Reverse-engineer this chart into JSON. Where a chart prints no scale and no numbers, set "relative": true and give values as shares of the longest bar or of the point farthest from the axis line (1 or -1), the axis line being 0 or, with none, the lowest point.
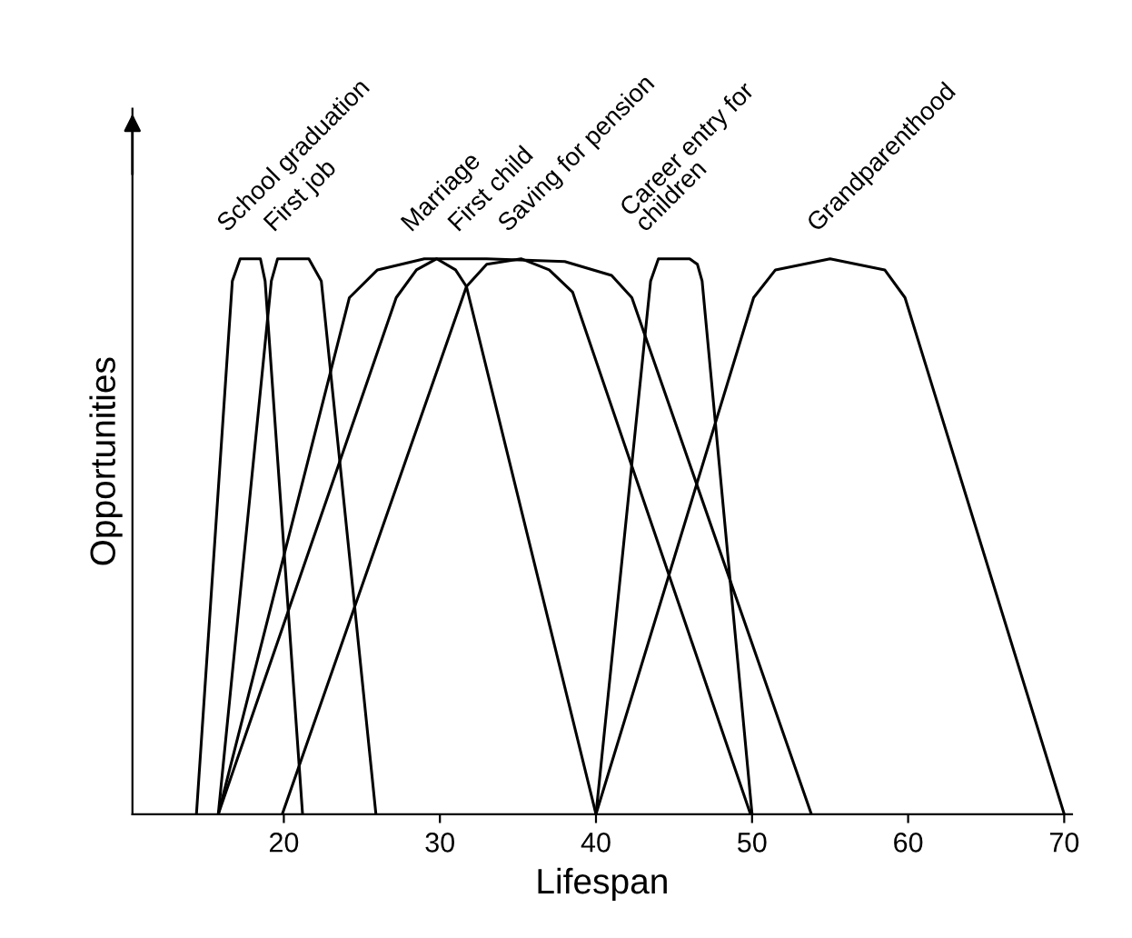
{
  "chart_data": {
    "type": "line",
    "relative": true,
    "xlabel": "Lifespan",
    "ylabel": "Opportunities",
    "xlim": [
      10.3,
      70.5
    ],
    "xticks": [
      20,
      30,
      40,
      50,
      60,
      70
    ],
    "grid": false,
    "legend": false,
    "marker": "none",
    "line_style": "solid",
    "series": [
      {
        "name": "School graduation",
        "color": "#000000",
        "x": [
          14.4,
          16.7,
          17.2,
          18.5,
          18.8,
          21.2
        ],
        "values": [
          0,
          0.96,
          1,
          1,
          0.96,
          0
        ]
      },
      {
        "name": "First job",
        "color": "#000000",
        "x": [
          15.8,
          19.2,
          19.6,
          21.6,
          22.4,
          25.9
        ],
        "values": [
          0,
          0.96,
          1,
          1,
          0.96,
          0
        ]
      },
      {
        "name": "Marriage",
        "color": "#000000",
        "x": [
          15.8,
          24.2,
          26,
          29,
          33,
          38,
          41,
          42.3,
          53.8
        ],
        "values": [
          0,
          0.93,
          0.98,
          1,
          1,
          0.995,
          0.97,
          0.93,
          0
        ]
      },
      {
        "name": "First child",
        "color": "#000000",
        "x": [
          15.8,
          27.2,
          28.5,
          29.8,
          31,
          31.7,
          40
        ],
        "values": [
          0,
          0.93,
          0.98,
          1,
          0.98,
          0.95,
          0
        ]
      },
      {
        "name": "Saving for pension",
        "color": "#000000",
        "x": [
          19.9,
          31.7,
          33,
          35.2,
          37,
          38.5,
          49.9
        ],
        "values": [
          0,
          0.95,
          0.99,
          1,
          0.98,
          0.94,
          0
        ]
      },
      {
        "name": "Career entry for\nchildren",
        "color": "#000000",
        "x": [
          40,
          43.5,
          44,
          46,
          46.5,
          46.8,
          50
        ],
        "values": [
          0,
          0.96,
          1,
          1,
          0.99,
          0.96,
          0
        ]
      },
      {
        "name": "Grandparenthood",
        "color": "#000000",
        "x": [
          40,
          50.1,
          51.5,
          55,
          58.5,
          59.8,
          70
        ],
        "values": [
          0,
          0.93,
          0.98,
          1,
          0.98,
          0.93,
          0
        ]
      }
    ]
  }
}
